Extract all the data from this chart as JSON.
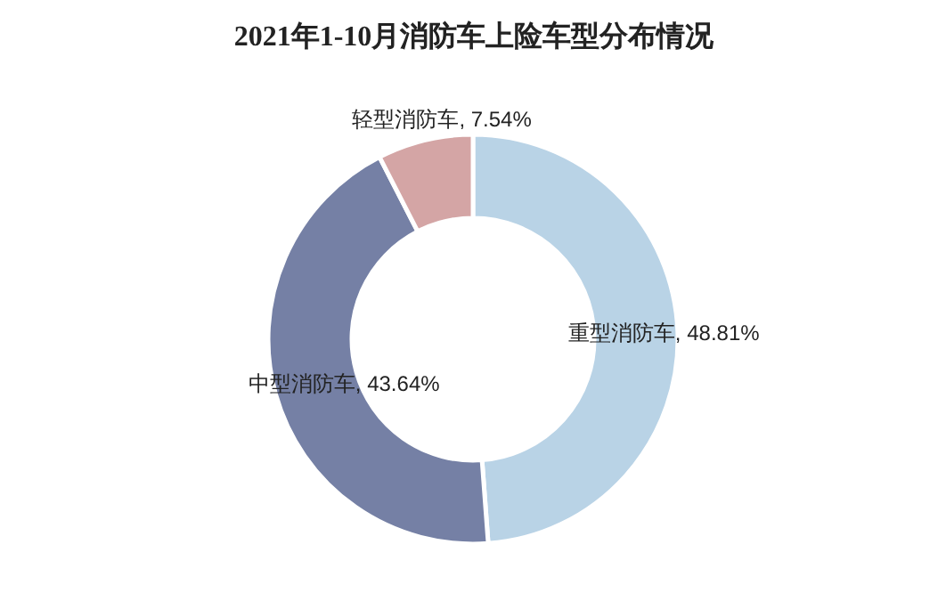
{
  "chart_data": {
    "type": "donut",
    "title": "2021年1-10月消防车上险车型分布情况",
    "categories": [
      "重型消防车",
      "中型消防车",
      "轻型消防车"
    ],
    "values": [
      48.81,
      43.64,
      7.54
    ],
    "value_labels": [
      ", 48.81%",
      ", 43.64%",
      ", 7.54%"
    ],
    "colors": [
      "#b9d3e6",
      "#7580a5",
      "#d4a5a5"
    ],
    "legend": false
  }
}
